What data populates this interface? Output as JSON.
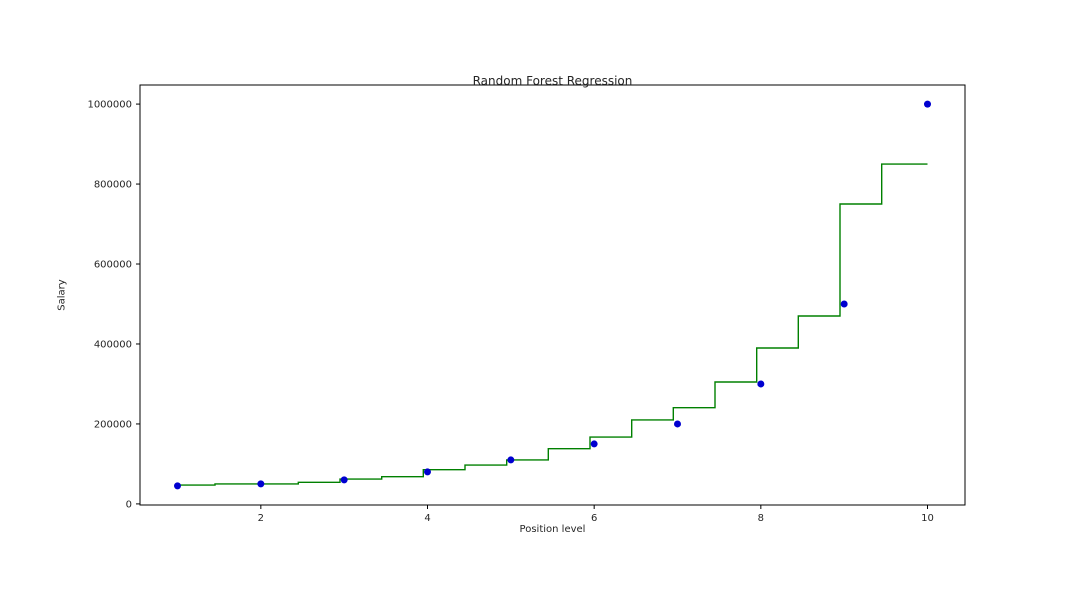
{
  "chart_data": {
    "type": "scatter",
    "title": "Random Forest Regression",
    "xlabel": "Position level",
    "ylabel": "Salary",
    "xlim": [
      0.55,
      10.45
    ],
    "ylim": [
      -2750,
      1047750
    ],
    "x_ticks": [
      2,
      4,
      6,
      8,
      10
    ],
    "y_ticks": [
      0,
      200000,
      400000,
      600000,
      800000,
      1000000
    ],
    "grid": false,
    "legend": "none",
    "scatter_color": "#0000d0",
    "line_color": "#008000",
    "scatter_x": [
      1,
      2,
      3,
      4,
      5,
      6,
      7,
      8,
      9,
      10
    ],
    "scatter_y": [
      45000,
      50000,
      60000,
      80000,
      110000,
      150000,
      200000,
      300000,
      500000,
      1000000
    ],
    "step_segments": [
      {
        "x0": 1.0,
        "x1": 1.45,
        "y": 47000
      },
      {
        "x0": 1.45,
        "x1": 2.45,
        "y": 50000
      },
      {
        "x0": 2.45,
        "x1": 2.95,
        "y": 54000
      },
      {
        "x0": 2.95,
        "x1": 3.45,
        "y": 62000
      },
      {
        "x0": 3.45,
        "x1": 3.95,
        "y": 68000
      },
      {
        "x0": 3.95,
        "x1": 4.45,
        "y": 85500
      },
      {
        "x0": 4.45,
        "x1": 4.95,
        "y": 97000
      },
      {
        "x0": 4.95,
        "x1": 5.45,
        "y": 110000
      },
      {
        "x0": 5.45,
        "x1": 5.95,
        "y": 138000
      },
      {
        "x0": 5.95,
        "x1": 6.45,
        "y": 167000
      },
      {
        "x0": 6.45,
        "x1": 6.95,
        "y": 210000
      },
      {
        "x0": 6.95,
        "x1": 7.45,
        "y": 240500
      },
      {
        "x0": 7.45,
        "x1": 7.95,
        "y": 305000
      },
      {
        "x0": 7.95,
        "x1": 8.45,
        "y": 390000
      },
      {
        "x0": 8.45,
        "x1": 8.95,
        "y": 470000
      },
      {
        "x0": 8.95,
        "x1": 9.45,
        "y": 750000
      },
      {
        "x0": 9.45,
        "x1": 10.0,
        "y": 850000
      }
    ]
  }
}
